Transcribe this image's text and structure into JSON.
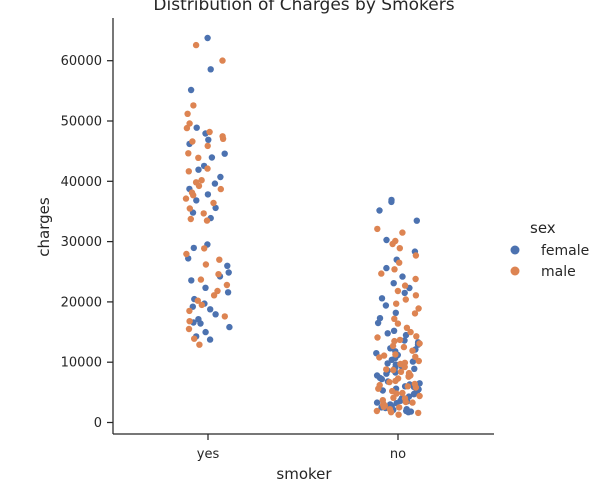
{
  "chart_data": {
    "type": "scatter",
    "title": "Distribution of Charges by Smokers",
    "xlabel": "smoker",
    "ylabel": "charges",
    "categories": [
      "yes",
      "no"
    ],
    "ylim": [
      -2000,
      67000
    ],
    "yticks": [
      0,
      10000,
      20000,
      30000,
      40000,
      50000,
      60000
    ],
    "ytick_labels": [
      "0",
      "10000",
      "20000",
      "30000",
      "40000",
      "50000",
      "60000"
    ],
    "grid": false,
    "legend": {
      "title": "sex",
      "placement": "right",
      "entries": [
        {
          "label": "female",
          "color": "#4c72b0"
        },
        {
          "label": "male",
          "color": "#dd8452"
        }
      ]
    },
    "series": [
      {
        "name": "female",
        "color": "#4c72b0",
        "x": [
          "yes",
          "yes",
          "yes",
          "yes",
          "yes",
          "yes",
          "yes",
          "yes",
          "yes",
          "yes",
          "yes",
          "yes",
          "yes",
          "yes",
          "yes",
          "yes",
          "yes",
          "yes",
          "yes",
          "yes",
          "yes",
          "yes",
          "yes",
          "yes",
          "yes",
          "yes",
          "yes",
          "yes",
          "yes",
          "yes",
          "yes",
          "yes",
          "yes",
          "yes",
          "yes",
          "yes",
          "yes",
          "yes",
          "yes",
          "yes",
          "no",
          "no",
          "no",
          "no",
          "no",
          "no",
          "no",
          "no",
          "no",
          "no",
          "no",
          "no",
          "no",
          "no",
          "no",
          "no",
          "no",
          "no",
          "no",
          "no",
          "no",
          "no",
          "no",
          "no",
          "no",
          "no",
          "no",
          "no",
          "no",
          "no",
          "no",
          "no",
          "no",
          "no",
          "no",
          "no",
          "no",
          "no",
          "no",
          "no",
          "no",
          "no",
          "no",
          "no",
          "no",
          "no",
          "no",
          "no",
          "no",
          "no",
          "no",
          "no",
          "no",
          "no",
          "no",
          "no",
          "no",
          "no",
          "no",
          "no",
          "no",
          "no",
          "no",
          "no",
          "no",
          "no",
          "no",
          "no",
          "no",
          "no"
        ],
        "y": [
          63770,
          58570,
          55135,
          48885,
          47928,
          46889,
          46200,
          44585,
          43943,
          42560,
          41919,
          40720,
          39611,
          38746,
          37829,
          36837,
          35585,
          34806,
          33900,
          29523,
          28950,
          27218,
          25992,
          24873,
          23568,
          22331,
          21595,
          20462,
          19720,
          18767,
          17942,
          17128,
          16577,
          15820,
          14988,
          14283,
          13747,
          16420,
          19199,
          24227,
          36910,
          36580,
          35160,
          33470,
          30260,
          28340,
          27000,
          25600,
          24200,
          23100,
          22300,
          21500,
          20600,
          19400,
          18200,
          17300,
          16500,
          15200,
          14500,
          13600,
          12900,
          12300,
          11800,
          11200,
          10700,
          10100,
          9600,
          9100,
          8600,
          8100,
          7700,
          7200,
          6800,
          6300,
          5900,
          5500,
          5100,
          4700,
          4300,
          3900,
          3600,
          3300,
          3000,
          2700,
          2400,
          2100,
          1900,
          1700,
          14800,
          13300,
          11500,
          10400,
          9300,
          8300,
          7400,
          6500,
          5600,
          4800,
          4000,
          3200,
          2500,
          1800,
          12100,
          9800,
          7800,
          5300,
          3500,
          2200,
          6000,
          8900
        ]
      },
      {
        "name": "male",
        "color": "#dd8452",
        "x": [
          "yes",
          "yes",
          "yes",
          "yes",
          "yes",
          "yes",
          "yes",
          "yes",
          "yes",
          "yes",
          "yes",
          "yes",
          "yes",
          "yes",
          "yes",
          "yes",
          "yes",
          "yes",
          "yes",
          "yes",
          "yes",
          "yes",
          "yes",
          "yes",
          "yes",
          "yes",
          "yes",
          "yes",
          "yes",
          "yes",
          "yes",
          "yes",
          "yes",
          "yes",
          "yes",
          "yes",
          "yes",
          "yes",
          "yes",
          "yes",
          "yes",
          "yes",
          "yes",
          "yes",
          "no",
          "no",
          "no",
          "no",
          "no",
          "no",
          "no",
          "no",
          "no",
          "no",
          "no",
          "no",
          "no",
          "no",
          "no",
          "no",
          "no",
          "no",
          "no",
          "no",
          "no",
          "no",
          "no",
          "no",
          "no",
          "no",
          "no",
          "no",
          "no",
          "no",
          "no",
          "no",
          "no",
          "no",
          "no",
          "no",
          "no",
          "no",
          "no",
          "no",
          "no",
          "no",
          "no",
          "no",
          "no",
          "no",
          "no",
          "no",
          "no",
          "no",
          "no",
          "no",
          "no",
          "no",
          "no",
          "no",
          "no",
          "no",
          "no",
          "no",
          "no",
          "no",
          "no",
          "no",
          "no",
          "no",
          "no",
          "no",
          "no",
          "no"
        ],
        "y": [
          62593,
          60021,
          52590,
          51195,
          49578,
          48824,
          48173,
          47462,
          47055,
          46599,
          45863,
          44641,
          43896,
          42112,
          41661,
          40182,
          39837,
          39241,
          38711,
          38126,
          37701,
          37133,
          36397,
          35491,
          34673,
          33750,
          33475,
          28868,
          27941,
          27000,
          26200,
          24600,
          23700,
          22800,
          21800,
          21100,
          20200,
          19500,
          18500,
          17600,
          16800,
          15500,
          13900,
          12900,
          32100,
          31500,
          30100,
          29600,
          28900,
          27700,
          26500,
          25400,
          24700,
          23800,
          22700,
          21800,
          21100,
          20400,
          19700,
          18900,
          18100,
          17200,
          16400,
          15700,
          15000,
          14300,
          13700,
          13100,
          12500,
          11900,
          11300,
          10800,
          10200,
          9700,
          9200,
          8700,
          8200,
          7800,
          7300,
          6900,
          6400,
          6000,
          5600,
          5200,
          4800,
          4400,
          4000,
          3700,
          3400,
          3100,
          2800,
          2500,
          2200,
          1900,
          1600,
          1300,
          14100,
          12700,
          11100,
          9900,
          8800,
          7600,
          6700,
          5800,
          4900,
          4100,
          3300,
          2600,
          1700,
          13500,
          10900,
          8400,
          6200,
          2900
        ]
      }
    ]
  }
}
